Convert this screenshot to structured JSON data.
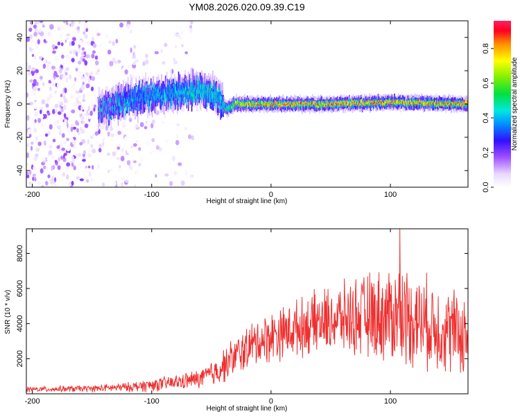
{
  "figure": {
    "title": "YM08.2026.020.09.39.C19"
  },
  "colors": {
    "snr_line": "#ee3030",
    "axis": "#000000",
    "background": "#ffffff"
  },
  "chart_data": [
    {
      "type": "heatmap",
      "name": "spectrogram",
      "xlabel": "Height of straight line (km)",
      "ylabel": "Frequency (Hz)",
      "xlim": [
        -205,
        165
      ],
      "ylim": [
        -50,
        50
      ],
      "xticks": [
        -200,
        -100,
        0,
        100
      ],
      "xtick_labels": [
        "-200",
        "-100",
        "0",
        "100"
      ],
      "yticks": [
        -40,
        -20,
        0,
        20,
        40
      ],
      "ytick_labels": [
        "-40",
        "-20",
        "0",
        "20",
        "40"
      ],
      "colorbar": {
        "label": "Normalized spectral amplitude",
        "range": [
          0,
          0.96
        ],
        "ticks": [
          0.0,
          0.2,
          0.4,
          0.6,
          0.8
        ],
        "tick_labels": [
          "0.0",
          "0.2",
          "0.4",
          "0.6",
          "0.8"
        ],
        "colormap": "rainbow (white→violet→blue→cyan→green→yellow→red)"
      },
      "ridge": {
        "description": "Dominant frequency ridge vs height",
        "x": [
          -140,
          -120,
          -100,
          -80,
          -60,
          -45,
          -38,
          -30,
          0,
          50,
          100,
          165
        ],
        "y_hz": [
          -3,
          3,
          5,
          7,
          8,
          5,
          -3,
          0,
          0,
          0,
          1,
          0
        ],
        "peak_amplitude": [
          0.25,
          0.35,
          0.4,
          0.45,
          0.5,
          0.45,
          0.5,
          0.85,
          0.92,
          0.92,
          0.92,
          0.9
        ]
      },
      "noise_region": {
        "x_range": [
          -205,
          -95
        ],
        "amplitude_range": [
          0.0,
          0.2
        ]
      }
    },
    {
      "type": "line",
      "name": "snr",
      "xlabel": "Height of straight line (km)",
      "ylabel": "SNR (10 * v/v)",
      "xlim": [
        -205,
        165
      ],
      "ylim": [
        0,
        9400
      ],
      "xticks": [
        -200,
        -100,
        0,
        100
      ],
      "xtick_labels": [
        "-200",
        "-100",
        "0",
        "100"
      ],
      "yticks": [
        2000,
        4000,
        6000,
        8000
      ],
      "ytick_labels": [
        "2000",
        "4000",
        "6000",
        "8000"
      ],
      "envelope": {
        "x": [
          -205,
          -150,
          -120,
          -100,
          -80,
          -60,
          -45,
          -35,
          -20,
          -10,
          0,
          20,
          40,
          60,
          80,
          100,
          108,
          120,
          140,
          165
        ],
        "mean": [
          250,
          300,
          380,
          500,
          650,
          850,
          1300,
          1900,
          2600,
          3000,
          3300,
          3700,
          4100,
          4300,
          4450,
          4500,
          4600,
          4300,
          3800,
          3300
        ],
        "amp": [
          150,
          180,
          250,
          350,
          400,
          500,
          800,
          1000,
          1200,
          1300,
          1400,
          1500,
          1700,
          1900,
          2300,
          2600,
          2800,
          2600,
          2400,
          2300
        ]
      },
      "peak": {
        "x": 108,
        "y": 9400
      }
    }
  ]
}
